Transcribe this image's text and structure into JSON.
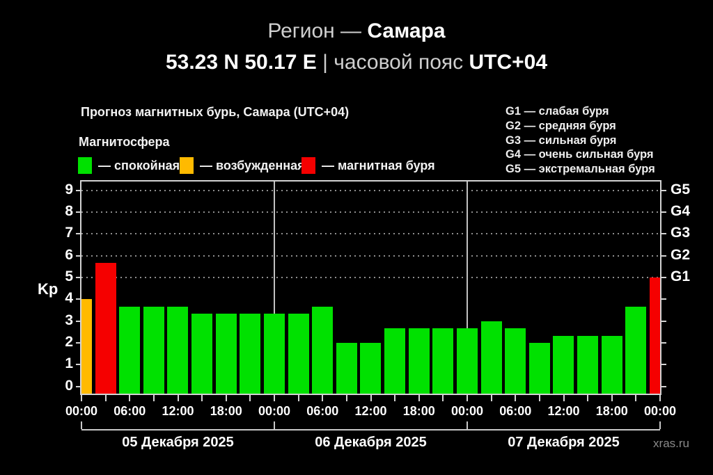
{
  "header": {
    "line1": {
      "prefix": "Регион — ",
      "region": "Самара"
    },
    "line2": {
      "coords": "53.23 N 50.17 E",
      "sep": " | ",
      "tz_text": "часовой пояс ",
      "tz_value": "UTC+04"
    }
  },
  "legend": {
    "chart_title": "Прогноз магнитных бурь, Самара (UTC+04)",
    "magnetosphere_label": "Магнитосфера",
    "items": [
      {
        "key": "quiet",
        "label": "— спокойная",
        "color": "#00e100"
      },
      {
        "key": "excited",
        "label": "— возбужденная",
        "color": "#ffba00"
      },
      {
        "key": "storm",
        "label": "— магнитная буря",
        "color": "#f50000"
      }
    ],
    "g_scale": [
      "G1 — слабая буря",
      "G2 — средняя буря",
      "G3 — сильная буря",
      "G4 — очень сильная буря",
      "G5 — экстремальная буря"
    ]
  },
  "chart_data": {
    "type": "bar",
    "title": "Прогноз магнитных бурь, Самара (UTC+04)",
    "ylabel": "Kp",
    "ylim": [
      -0.33,
      9.41
    ],
    "yticks": [
      0,
      1,
      2,
      3,
      4,
      5,
      6,
      7,
      8,
      9
    ],
    "gridlines_at": [
      5,
      6,
      7,
      8,
      9
    ],
    "grid_style": "dotted, only at G-storm levels",
    "legend_position": "top-left",
    "right_axis": [
      {
        "value": 5,
        "label": "G1"
      },
      {
        "value": 6,
        "label": "G2"
      },
      {
        "value": 7,
        "label": "G3"
      },
      {
        "value": 8,
        "label": "G4"
      },
      {
        "value": 9,
        "label": "G5"
      }
    ],
    "x_hours_range": [
      0,
      72
    ],
    "bar_width_hours": 2.6,
    "minor_tick_step_hours": 3,
    "day_separators_hours": [
      24,
      48
    ],
    "x_labels": [
      {
        "hour": 0,
        "text": "00:00"
      },
      {
        "hour": 6,
        "text": "06:00"
      },
      {
        "hour": 12,
        "text": "12:00"
      },
      {
        "hour": 18,
        "text": "18:00"
      },
      {
        "hour": 24,
        "text": "00:00"
      },
      {
        "hour": 30,
        "text": "06:00"
      },
      {
        "hour": 36,
        "text": "12:00"
      },
      {
        "hour": 42,
        "text": "18:00"
      },
      {
        "hour": 48,
        "text": "00:00"
      },
      {
        "hour": 54,
        "text": "06:00"
      },
      {
        "hour": 60,
        "text": "12:00"
      },
      {
        "hour": 66,
        "text": "18:00"
      },
      {
        "hour": 72,
        "text": "00:00"
      }
    ],
    "day_brackets": {
      "tick_hours": [
        0,
        24,
        48,
        72
      ],
      "labels": [
        {
          "center_hour": 12,
          "text": "05 Декабря 2025"
        },
        {
          "center_hour": 36,
          "text": "06 Декабря 2025"
        },
        {
          "center_hour": 60,
          "text": "07 Декабря 2025"
        }
      ]
    },
    "series": [
      {
        "hour": 0,
        "kp": 4.0,
        "level": "excited"
      },
      {
        "hour": 3,
        "kp": 5.67,
        "level": "storm"
      },
      {
        "hour": 6,
        "kp": 3.67,
        "level": "quiet"
      },
      {
        "hour": 9,
        "kp": 3.67,
        "level": "quiet"
      },
      {
        "hour": 12,
        "kp": 3.67,
        "level": "quiet"
      },
      {
        "hour": 15,
        "kp": 3.33,
        "level": "quiet"
      },
      {
        "hour": 18,
        "kp": 3.33,
        "level": "quiet"
      },
      {
        "hour": 21,
        "kp": 3.33,
        "level": "quiet"
      },
      {
        "hour": 24,
        "kp": 3.33,
        "level": "quiet"
      },
      {
        "hour": 27,
        "kp": 3.33,
        "level": "quiet"
      },
      {
        "hour": 30,
        "kp": 3.67,
        "level": "quiet"
      },
      {
        "hour": 33,
        "kp": 2.0,
        "level": "quiet"
      },
      {
        "hour": 36,
        "kp": 2.0,
        "level": "quiet"
      },
      {
        "hour": 39,
        "kp": 2.67,
        "level": "quiet"
      },
      {
        "hour": 42,
        "kp": 2.67,
        "level": "quiet"
      },
      {
        "hour": 45,
        "kp": 2.67,
        "level": "quiet"
      },
      {
        "hour": 48,
        "kp": 2.67,
        "level": "quiet"
      },
      {
        "hour": 51,
        "kp": 3.0,
        "level": "quiet"
      },
      {
        "hour": 54,
        "kp": 2.67,
        "level": "quiet"
      },
      {
        "hour": 57,
        "kp": 2.0,
        "level": "quiet"
      },
      {
        "hour": 60,
        "kp": 2.33,
        "level": "quiet"
      },
      {
        "hour": 63,
        "kp": 2.33,
        "level": "quiet"
      },
      {
        "hour": 66,
        "kp": 2.33,
        "level": "quiet"
      },
      {
        "hour": 69,
        "kp": 3.67,
        "level": "quiet"
      },
      {
        "hour": 72,
        "kp": 5.0,
        "level": "storm"
      }
    ]
  },
  "footer": {
    "watermark": "xras.ru"
  },
  "colors": {
    "background": "#000000",
    "text": "#ffffff",
    "dim_text": "#cfcfcf",
    "axis": "#d4d4d4",
    "grid": "#8f8f8f",
    "day_separator": "#c2c2c2",
    "watermark": "#8a8a8a"
  }
}
